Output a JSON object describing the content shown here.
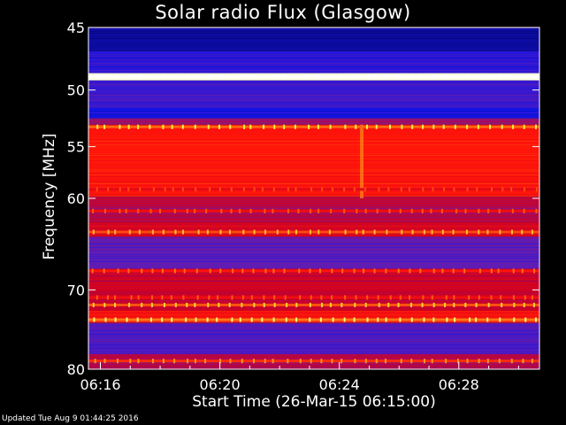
{
  "chart_data": {
    "type": "heatmap",
    "title": "Solar radio Flux (Glasgow)",
    "xlabel": "Start Time (26-Mar-15 06:15:00)",
    "ylabel": "Frequency [MHz]",
    "x_ticks": [
      "06:16",
      "06:20",
      "06:24",
      "06:28"
    ],
    "x_tick_minutes": [
      16,
      20,
      24,
      28
    ],
    "x_range_minutes": [
      15.6,
      30.7
    ],
    "y_ticks": [
      45,
      50,
      55,
      60,
      70,
      80
    ],
    "y_range_mhz": [
      45,
      80
    ],
    "y_scale": "log",
    "colormap": "blue-red-yellow-white",
    "bands": [
      {
        "f0": 45.0,
        "f1": 46.8,
        "level": 0.12
      },
      {
        "f0": 46.8,
        "f1": 48.6,
        "level": 0.25
      },
      {
        "f0": 48.6,
        "f1": 49.2,
        "level": 0.98
      },
      {
        "f0": 49.2,
        "f1": 51.5,
        "level": 0.28
      },
      {
        "f0": 51.5,
        "f1": 52.4,
        "level": 0.22
      },
      {
        "f0": 52.4,
        "f1": 53.0,
        "level": 0.4
      },
      {
        "f0": 53.0,
        "f1": 59.8,
        "level": 0.62
      },
      {
        "f0": 59.8,
        "f1": 62.5,
        "level": 0.45
      },
      {
        "f0": 62.5,
        "f1": 64.0,
        "level": 0.52
      },
      {
        "f0": 64.0,
        "f1": 67.5,
        "level": 0.32
      },
      {
        "f0": 67.5,
        "f1": 72.5,
        "level": 0.48
      },
      {
        "f0": 72.5,
        "f1": 74.0,
        "level": 0.6
      },
      {
        "f0": 74.0,
        "f1": 78.0,
        "level": 0.3
      },
      {
        "f0": 78.0,
        "f1": 80.0,
        "level": 0.45
      }
    ],
    "lines": [
      {
        "f": 48.9,
        "level": 1.0
      },
      {
        "f": 53.2,
        "level": 0.75
      },
      {
        "f": 59.1,
        "level": 0.55
      },
      {
        "f": 61.3,
        "level": 0.58
      },
      {
        "f": 63.5,
        "level": 0.7
      },
      {
        "f": 67.8,
        "level": 0.62
      },
      {
        "f": 70.9,
        "level": 0.58
      },
      {
        "f": 71.8,
        "level": 0.72
      },
      {
        "f": 73.6,
        "level": 0.78
      },
      {
        "f": 78.9,
        "level": 0.66
      }
    ],
    "burst": {
      "t_minutes": 24.75,
      "f_range": [
        53,
        60
      ],
      "level": 0.8
    }
  },
  "footer": "Updated Tue Aug  9 01:44:25 2016"
}
